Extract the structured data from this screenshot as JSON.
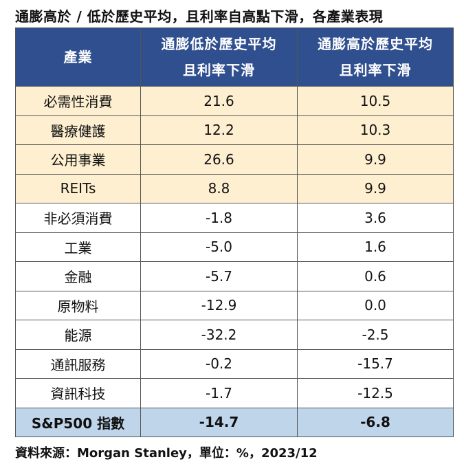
{
  "chart_data": {
    "type": "table",
    "title": "通膨高於 / 低於歷史平均，且利率自高點下滑，各產業表現",
    "columns": [
      {
        "name": "產業"
      },
      {
        "name_lines": [
          "通膨低於歷史平均",
          "且利率下滑"
        ]
      },
      {
        "name_lines": [
          "通膨高於歷史平均",
          "且利率下滑"
        ]
      }
    ],
    "rows": [
      {
        "sector": "必需性消費",
        "low": "21.6",
        "high": "10.5",
        "highlight": true
      },
      {
        "sector": "醫療健護",
        "low": "12.2",
        "high": "10.3",
        "highlight": true
      },
      {
        "sector": "公用事業",
        "low": "26.6",
        "high": "9.9",
        "highlight": true
      },
      {
        "sector": "REITs",
        "low": "8.8",
        "high": "9.9",
        "highlight": true
      },
      {
        "sector": "非必須消費",
        "low": "-1.8",
        "high": "3.6",
        "highlight": false
      },
      {
        "sector": "工業",
        "low": "-5.0",
        "high": "1.6",
        "highlight": false
      },
      {
        "sector": "金融",
        "low": "-5.7",
        "high": "0.6",
        "highlight": false
      },
      {
        "sector": "原物料",
        "low": "-12.9",
        "high": "0.0",
        "highlight": false
      },
      {
        "sector": "能源",
        "low": "-32.2",
        "high": "-2.5",
        "highlight": false
      },
      {
        "sector": "通訊服務",
        "low": "-0.2",
        "high": "-15.7",
        "highlight": false
      },
      {
        "sector": "資訊科技",
        "low": "-1.7",
        "high": "-12.5",
        "highlight": false
      }
    ],
    "total": {
      "sector": "S&P500 指數",
      "low": "-14.7",
      "high": "-6.8"
    },
    "source": "資料來源：Morgan Stanley，單位：%，2023/12"
  },
  "colors": {
    "header_bg": "#2f4f8f",
    "highlight_bg": "#fdefcf",
    "total_bg": "#bfd5ea"
  }
}
